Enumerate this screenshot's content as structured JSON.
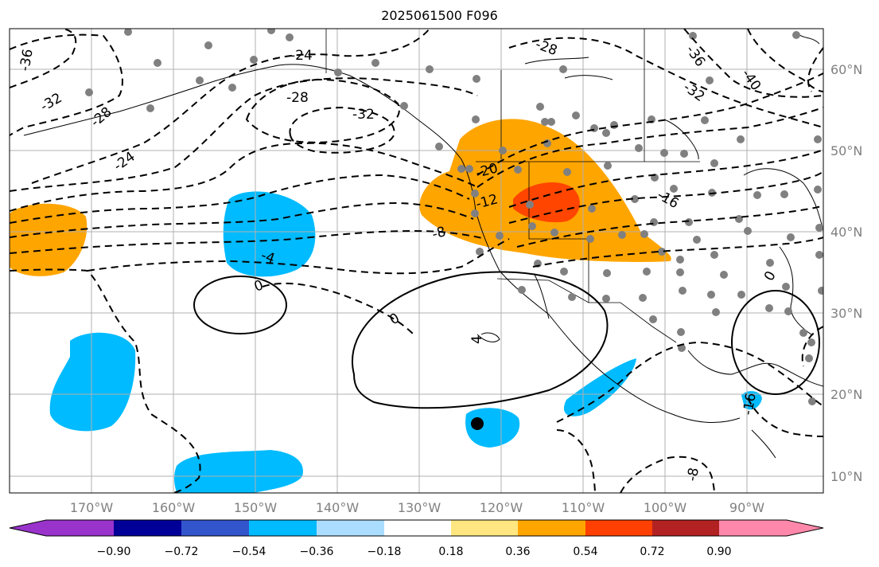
{
  "title": "2025061500 F096",
  "map": {
    "lon_labels": [
      "170°W",
      "160°W",
      "150°W",
      "140°W",
      "130°W",
      "120°W",
      "110°W",
      "100°W",
      "90°W"
    ],
    "lat_labels": [
      "60°N",
      "50°N",
      "40°N",
      "30°N",
      "20°N",
      "10°N"
    ],
    "contour_labels": [
      "-36",
      "-32",
      "-28",
      "-24",
      "-24",
      "-28",
      "-32",
      "-28",
      "-36",
      "-32",
      "-40",
      "-20",
      "-16",
      "-12",
      "-8",
      "-4",
      "0",
      "0",
      "0",
      "4",
      "-8",
      "-16"
    ],
    "colors": {
      "land": "#000000",
      "contour": "#000000",
      "grid": "#b0b0b0",
      "stations": "#808080",
      "highlight_point": "#000000"
    }
  },
  "colorbar": {
    "tick_labels": [
      "−0.90",
      "−0.72",
      "−0.54",
      "−0.36",
      "−0.18",
      "0.18",
      "0.36",
      "0.54",
      "0.72",
      "0.90"
    ],
    "colors": [
      "#9933cc",
      "#000099",
      "#3355cc",
      "#00bbff",
      "#aaddff",
      "#ffffff",
      "#ffe680",
      "#ffa500",
      "#ff4000",
      "#b22222",
      "#ff88aa"
    ]
  }
}
